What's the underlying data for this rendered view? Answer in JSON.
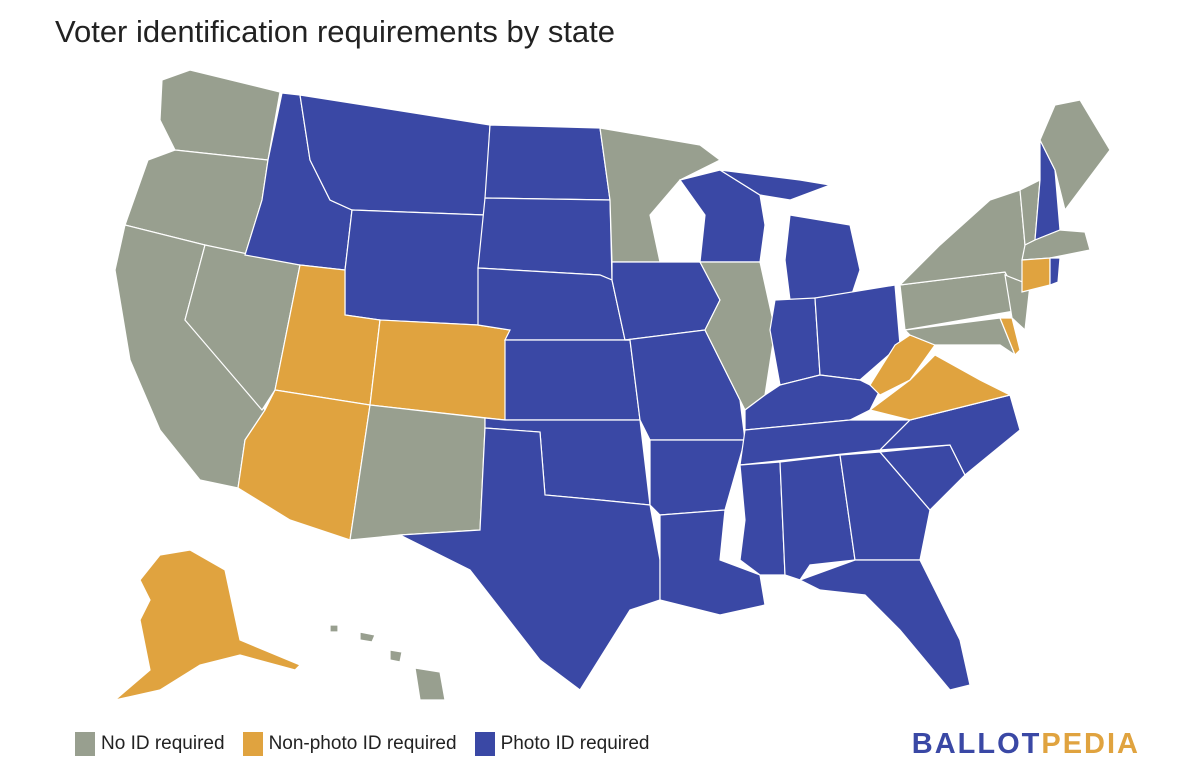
{
  "title": "Voter identification requirements by state",
  "colors": {
    "none": "#989f8f",
    "nonphoto": "#e0a33f",
    "photo": "#3a48a5"
  },
  "legend": [
    {
      "key": "none",
      "label": "No ID required"
    },
    {
      "key": "nonphoto",
      "label": "Non-photo ID required"
    },
    {
      "key": "photo",
      "label": "Photo ID required"
    }
  ],
  "logo": {
    "part1": "BALLOT",
    "part2": "PEDIA"
  },
  "states": {
    "WA": "none",
    "OR": "none",
    "CA": "none",
    "NV": "none",
    "ID": "photo",
    "MT": "photo",
    "WY": "photo",
    "UT": "nonphoto",
    "CO": "nonphoto",
    "AZ": "nonphoto",
    "NM": "none",
    "ND": "photo",
    "SD": "photo",
    "NE": "photo",
    "KS": "photo",
    "OK": "photo",
    "TX": "photo",
    "MN": "none",
    "IA": "photo",
    "MO": "photo",
    "AR": "photo",
    "LA": "photo",
    "WI": "photo",
    "IL": "none",
    "MI": "photo",
    "IN": "photo",
    "OH": "photo",
    "KY": "photo",
    "TN": "photo",
    "MS": "photo",
    "AL": "photo",
    "GA": "photo",
    "FL": "photo",
    "SC": "photo",
    "NC": "photo",
    "VA": "nonphoto",
    "WV": "nonphoto",
    "PA": "none",
    "NY": "none",
    "MD": "none",
    "DE": "nonphoto",
    "NJ": "none",
    "VT": "none",
    "NH": "photo",
    "ME": "none",
    "MA": "none",
    "CT": "nonphoto",
    "RI": "photo",
    "AK": "nonphoto",
    "HI": "none"
  }
}
